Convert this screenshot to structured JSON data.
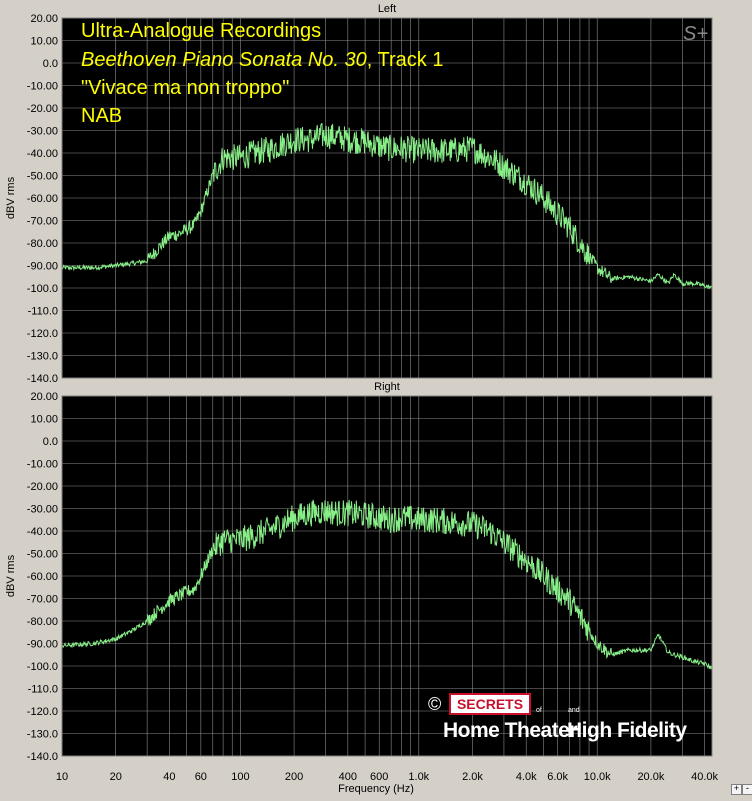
{
  "annotation": {
    "line1": "Ultra-Analogue Recordings",
    "line2_italic": "Beethoven Piano Sonata No. 30",
    "line2_rest": ", Track 1",
    "line3": "\"Vivace ma non troppo\"",
    "line4": "NAB",
    "color": "#ffff00"
  },
  "mark": "S+",
  "logo": {
    "copyright": "©",
    "badge": "SECRETS",
    "of": "of",
    "and": "and",
    "part1": "Home Theater",
    "part2": "High Fidelity"
  },
  "zoom_in": "+",
  "zoom_out": "-",
  "colors": {
    "plot_bg": "#000000",
    "trace": "#88ee88",
    "grid": "#8c8c8c",
    "frame": "#d4d0c8",
    "badge": "#c8102e"
  },
  "chart_data": [
    {
      "type": "line",
      "title": "Left",
      "xlabel": "",
      "ylabel": "dBV rms",
      "x_scale": "log",
      "xlim": [
        10,
        44000
      ],
      "ylim": [
        -140,
        20
      ],
      "y_ticks": [
        "20.00",
        "10.00",
        "0.0",
        "-10.00",
        "-20.00",
        "-30.00",
        "-40.00",
        "-50.00",
        "-60.00",
        "-70.00",
        "-80.00",
        "-90.00",
        "-100.0",
        "-110.0",
        "-120.0",
        "-130.0",
        "-140.0"
      ],
      "grid": true,
      "series": [
        {
          "x": [
            10,
            15,
            20,
            25,
            30,
            35,
            40,
            45,
            50,
            55,
            60,
            70,
            80,
            100,
            120,
            150,
            200,
            250,
            300,
            350,
            400,
            500,
            600,
            700,
            800,
            1000,
            1200,
            1500,
            2000,
            2500,
            3000,
            4000,
            5000,
            6000,
            7000,
            8000,
            9000,
            10000,
            12000,
            15000,
            20000,
            22000,
            25000,
            27000,
            30000,
            35000,
            40000,
            44000
          ],
          "y": [
            -91,
            -91,
            -90,
            -89,
            -88,
            -82,
            -77,
            -76,
            -74,
            -72,
            -66,
            -50,
            -42,
            -42,
            -40,
            -38,
            -34,
            -34,
            -32,
            -33,
            -34,
            -35,
            -37,
            -38,
            -38,
            -39,
            -39,
            -39,
            -38,
            -42,
            -46,
            -53,
            -60,
            -67,
            -73,
            -80,
            -86,
            -91,
            -96,
            -95,
            -97,
            -94,
            -98,
            -94,
            -98,
            -98,
            -99,
            -100
          ]
        }
      ]
    },
    {
      "type": "line",
      "title": "Right",
      "xlabel": "Frequency (Hz)",
      "ylabel": "dBV rms",
      "x_scale": "log",
      "xlim": [
        10,
        44000
      ],
      "ylim": [
        -140,
        20
      ],
      "x_ticks": [
        "10",
        "20",
        "40",
        "60",
        "100",
        "200",
        "400",
        "600",
        "1.0k",
        "2.0k",
        "4.0k",
        "6.0k",
        "10.0k",
        "20.0k",
        "40.0k"
      ],
      "y_ticks": [
        "20.00",
        "10.00",
        "0.0",
        "-10.00",
        "-20.00",
        "-30.00",
        "-40.00",
        "-50.00",
        "-60.00",
        "-70.00",
        "-80.00",
        "-90.00",
        "-100.0",
        "-110.0",
        "-120.0",
        "-130.0",
        "-140.0"
      ],
      "grid": true,
      "series": [
        {
          "x": [
            10,
            15,
            20,
            25,
            30,
            35,
            40,
            45,
            50,
            55,
            60,
            70,
            80,
            100,
            120,
            150,
            200,
            250,
            300,
            350,
            400,
            500,
            600,
            700,
            800,
            1000,
            1200,
            1500,
            2000,
            2500,
            3000,
            4000,
            5000,
            6000,
            7000,
            8000,
            9000,
            10000,
            12000,
            15000,
            20000,
            22000,
            25000,
            27000,
            30000,
            35000,
            40000,
            44000
          ],
          "y": [
            -91,
            -90,
            -88,
            -84,
            -80,
            -75,
            -71,
            -69,
            -67,
            -66,
            -60,
            -48,
            -44,
            -44,
            -42,
            -39,
            -34,
            -32,
            -31,
            -32,
            -32,
            -33,
            -34,
            -35,
            -34,
            -35,
            -35,
            -36,
            -37,
            -40,
            -45,
            -53,
            -60,
            -66,
            -71,
            -78,
            -84,
            -90,
            -95,
            -93,
            -93,
            -86,
            -94,
            -95,
            -96,
            -98,
            -99,
            -101
          ]
        }
      ]
    }
  ]
}
